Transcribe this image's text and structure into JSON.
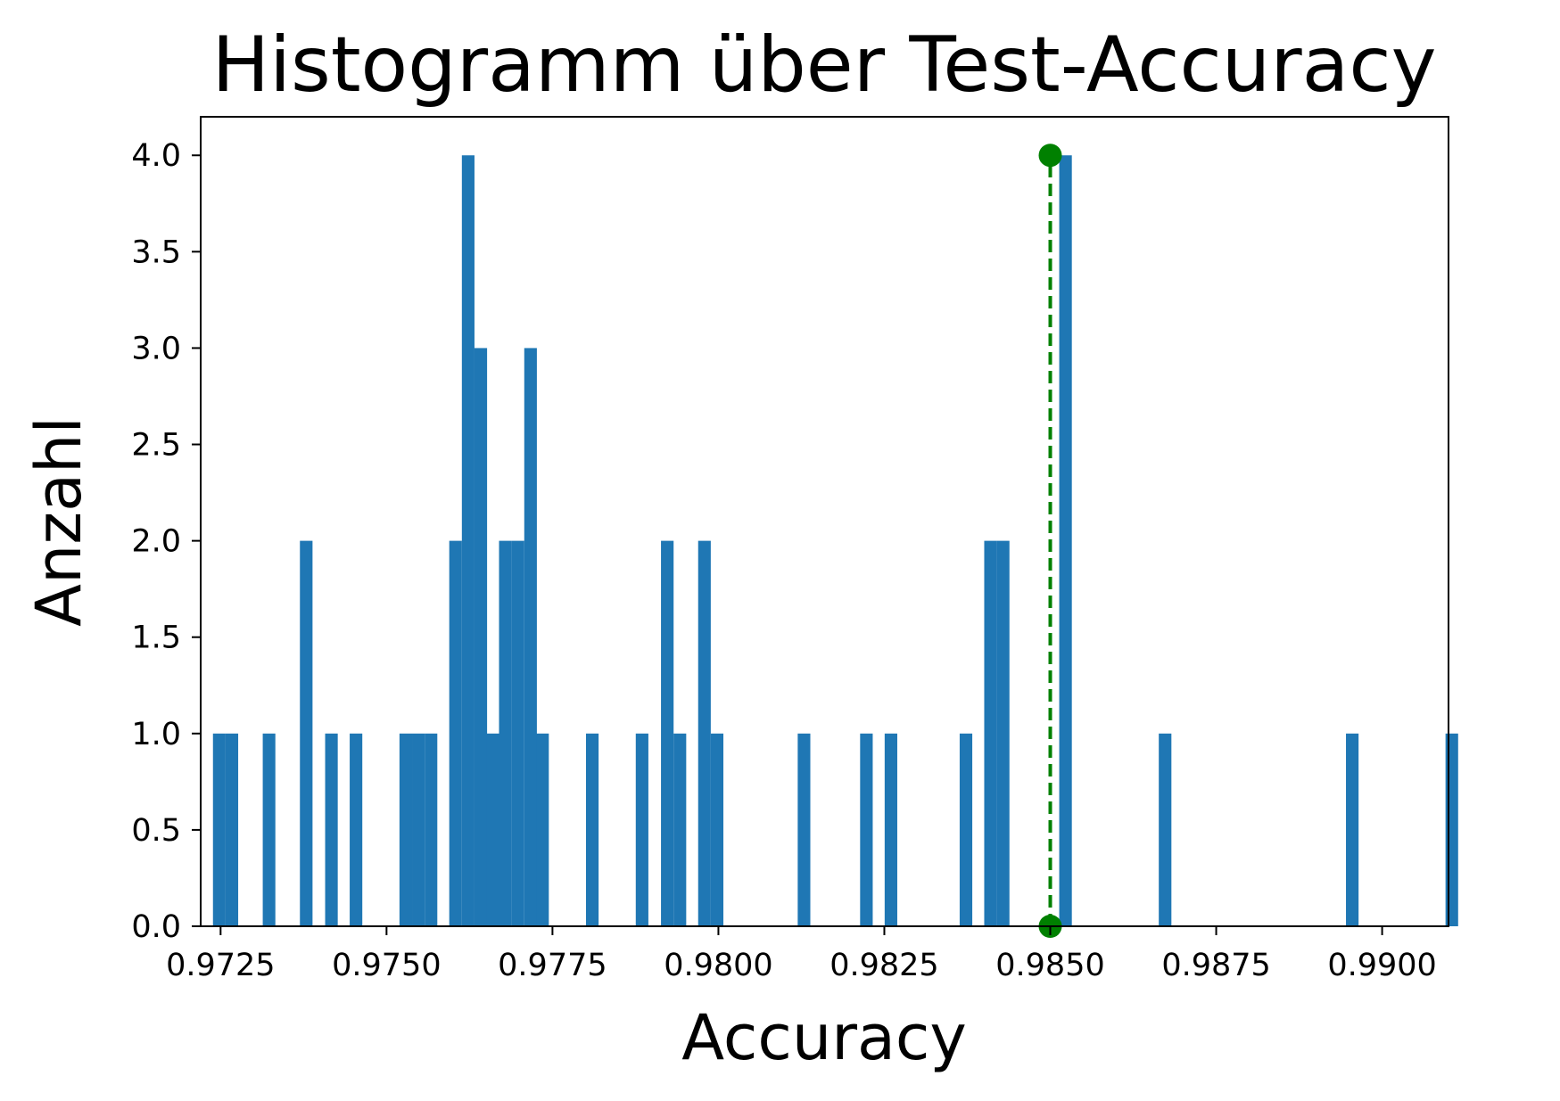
{
  "chart_data": {
    "type": "bar",
    "title": "Histogramm über Test-Accuracy",
    "xlabel": "Accuracy",
    "ylabel": "Anzahl",
    "xlim": [
      0.9722,
      0.991
    ],
    "ylim": [
      0,
      4.2
    ],
    "grid": false,
    "bar_color": "#1f77b4",
    "bin_width": 0.00019,
    "x_ticks": [
      {
        "value": 0.9725,
        "label": "0.9725"
      },
      {
        "value": 0.975,
        "label": "0.9750"
      },
      {
        "value": 0.9775,
        "label": "0.9775"
      },
      {
        "value": 0.98,
        "label": "0.9800"
      },
      {
        "value": 0.9825,
        "label": "0.9825"
      },
      {
        "value": 0.985,
        "label": "0.9850"
      },
      {
        "value": 0.9875,
        "label": "0.9875"
      },
      {
        "value": 0.99,
        "label": "0.9900"
      }
    ],
    "y_ticks": [
      {
        "value": 0.0,
        "label": "0.0"
      },
      {
        "value": 0.5,
        "label": "0.5"
      },
      {
        "value": 1.0,
        "label": "1.0"
      },
      {
        "value": 1.5,
        "label": "1.5"
      },
      {
        "value": 2.0,
        "label": "2.0"
      },
      {
        "value": 2.5,
        "label": "2.5"
      },
      {
        "value": 3.0,
        "label": "3.0"
      },
      {
        "value": 3.5,
        "label": "3.5"
      },
      {
        "value": 4.0,
        "label": "4.0"
      }
    ],
    "bars": [
      {
        "x": 0.97248,
        "count": 1
      },
      {
        "x": 0.97267,
        "count": 1
      },
      {
        "x": 0.97323,
        "count": 1
      },
      {
        "x": 0.97379,
        "count": 2
      },
      {
        "x": 0.97417,
        "count": 1
      },
      {
        "x": 0.97454,
        "count": 1
      },
      {
        "x": 0.97529,
        "count": 1
      },
      {
        "x": 0.97548,
        "count": 1
      },
      {
        "x": 0.97567,
        "count": 1
      },
      {
        "x": 0.97604,
        "count": 2
      },
      {
        "x": 0.97623,
        "count": 4
      },
      {
        "x": 0.97642,
        "count": 3
      },
      {
        "x": 0.9766,
        "count": 1
      },
      {
        "x": 0.97679,
        "count": 2
      },
      {
        "x": 0.97698,
        "count": 2
      },
      {
        "x": 0.97717,
        "count": 3
      },
      {
        "x": 0.97735,
        "count": 1
      },
      {
        "x": 0.9781,
        "count": 1
      },
      {
        "x": 0.97885,
        "count": 1
      },
      {
        "x": 0.97923,
        "count": 2
      },
      {
        "x": 0.97942,
        "count": 1
      },
      {
        "x": 0.97979,
        "count": 2
      },
      {
        "x": 0.97998,
        "count": 1
      },
      {
        "x": 0.98129,
        "count": 1
      },
      {
        "x": 0.98223,
        "count": 1
      },
      {
        "x": 0.9826,
        "count": 1
      },
      {
        "x": 0.98373,
        "count": 1
      },
      {
        "x": 0.9841,
        "count": 2
      },
      {
        "x": 0.98429,
        "count": 2
      },
      {
        "x": 0.98523,
        "count": 4
      },
      {
        "x": 0.98673,
        "count": 1
      },
      {
        "x": 0.98955,
        "count": 1
      },
      {
        "x": 0.99105,
        "count": 1
      }
    ],
    "annotations": [
      {
        "type": "vertical-line",
        "x": 0.985,
        "y_from": 0,
        "y_to": 4,
        "color": "#008000",
        "style": "dashed",
        "markers": "circle-endpoints"
      }
    ]
  }
}
